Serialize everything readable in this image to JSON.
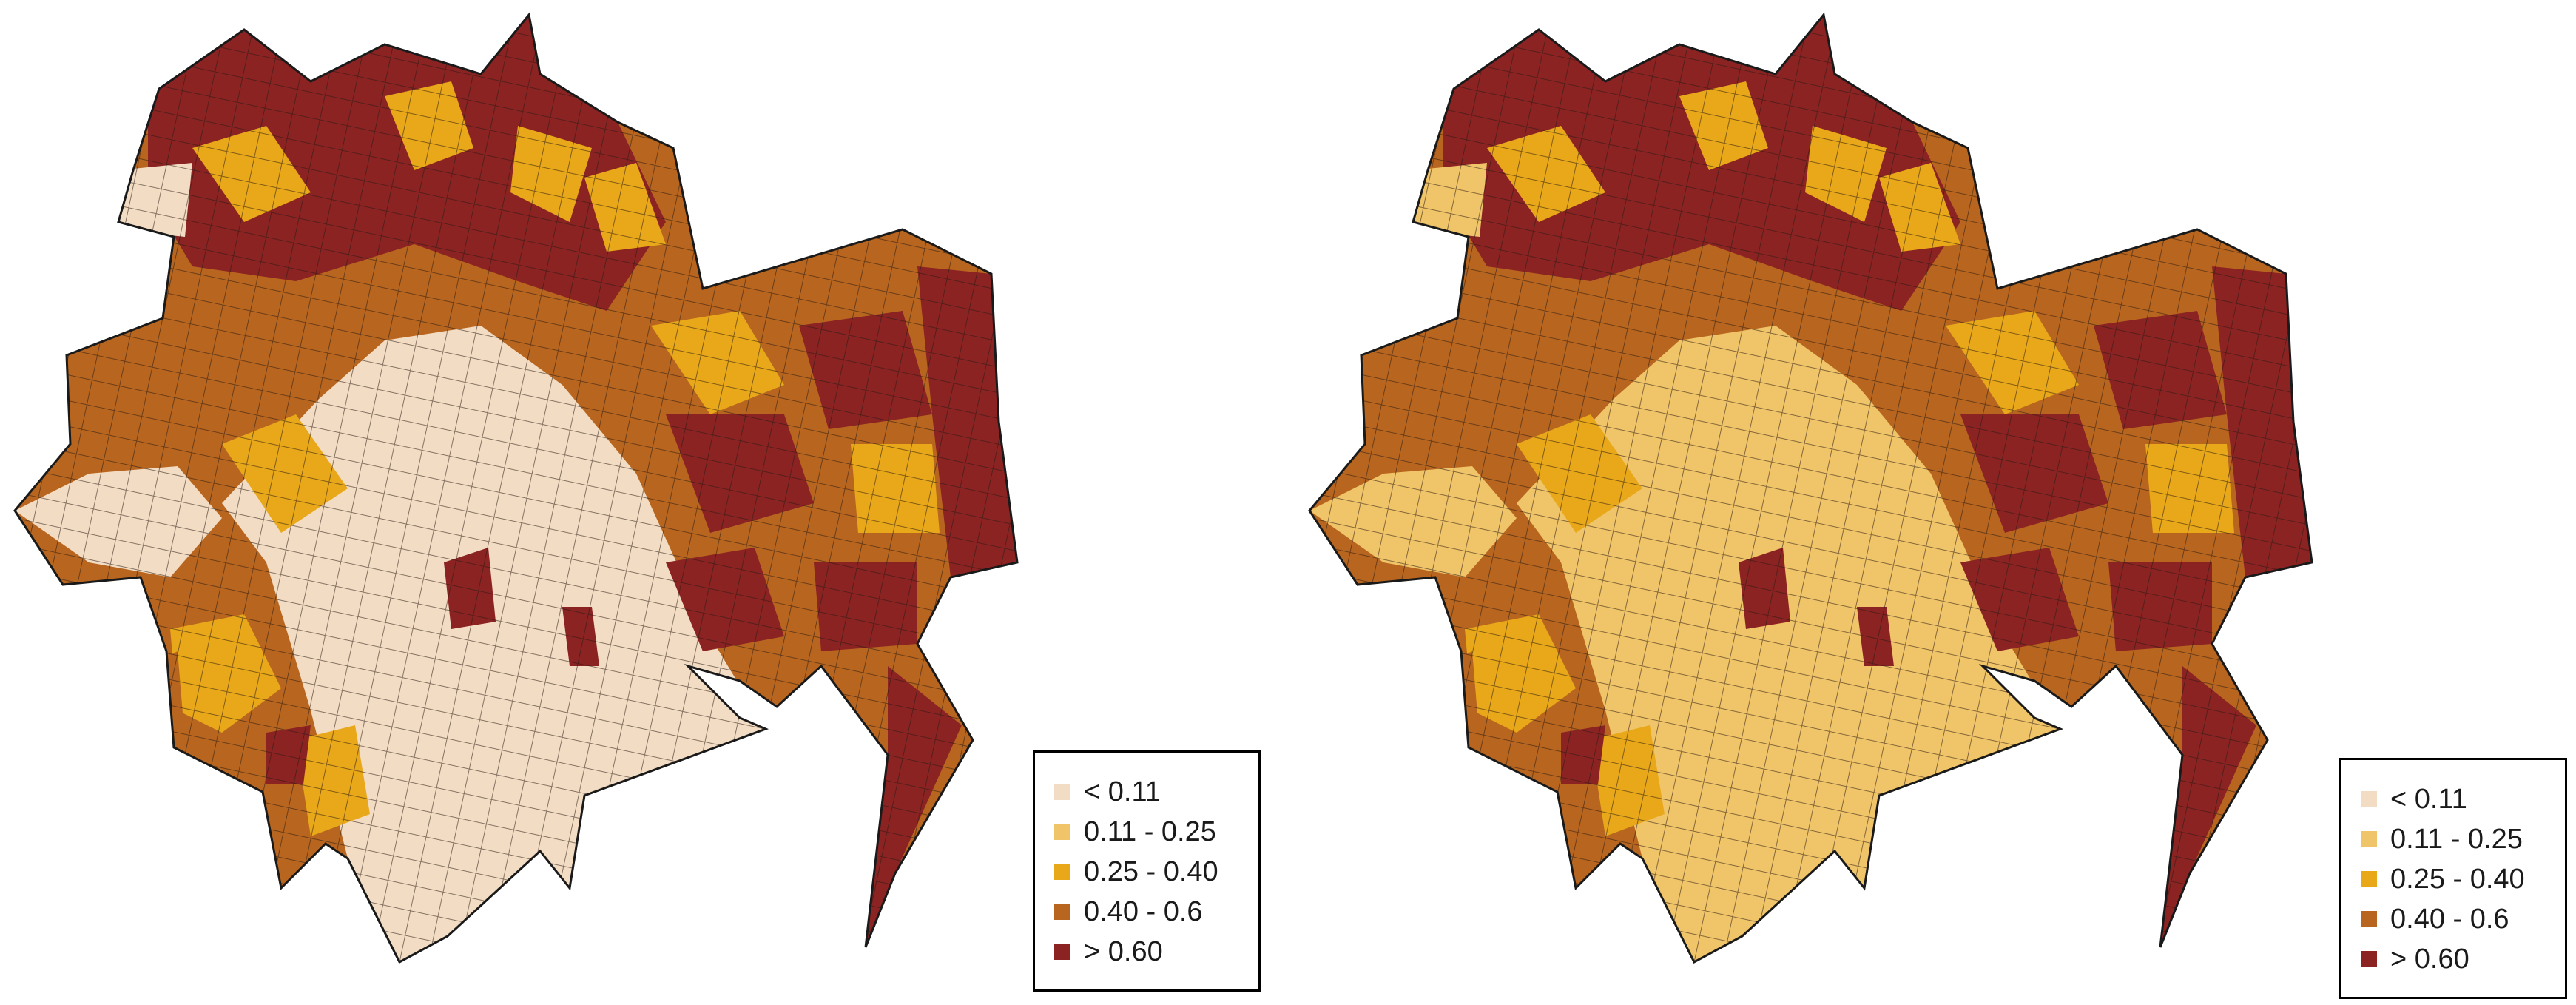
{
  "maps": [
    {
      "id": "left",
      "legend": [
        {
          "label": "< 0.11",
          "color": "#f2dcc3"
        },
        {
          "label": "0.11 - 0.25",
          "color": "#f0c469"
        },
        {
          "label": "0.25 - 0.40",
          "color": "#e8a81a"
        },
        {
          "label": "0.40 - 0.6",
          "color": "#b8661f"
        },
        {
          "label": "> 0.60",
          "color": "#8b2323"
        }
      ]
    },
    {
      "id": "right",
      "legend": [
        {
          "label": "< 0.11",
          "color": "#f2dcc3"
        },
        {
          "label": "0.11 - 0.25",
          "color": "#f0c469"
        },
        {
          "label": "0.25 - 0.40",
          "color": "#e8a81a"
        },
        {
          "label": "0.40 - 0.6",
          "color": "#b8661f"
        },
        {
          "label": "> 0.60",
          "color": "#8b2323"
        }
      ]
    }
  ]
}
